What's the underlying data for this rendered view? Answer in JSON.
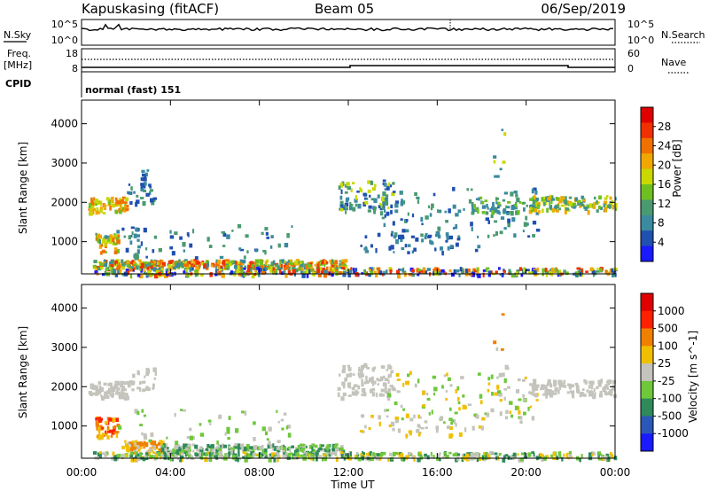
{
  "header": {
    "station": "Kapuskasing (fitACF)",
    "beam": "Beam 05",
    "date": "06/Sep/2019"
  },
  "noise": {
    "left_label": "N.Sky",
    "left_ticks": [
      "10^5",
      "10^0"
    ],
    "right_label": "N.Search",
    "right_ticks": [
      "10^5",
      "10^0"
    ]
  },
  "freq": {
    "left_label": "Freq.",
    "left_unit": "[MHz]",
    "left_ticks": [
      "18",
      "8"
    ],
    "right_label": "Nave",
    "right_ticks": [
      "60",
      "0"
    ]
  },
  "cpid": {
    "label": "CPID",
    "value": "normal (fast) 151"
  },
  "chart_data": [
    {
      "type": "scatter",
      "title": "",
      "xlabel": "",
      "ylabel": "Slant Range [km]",
      "x_ticks": [
        "00:00",
        "04:00",
        "08:00",
        "12:00",
        "16:00",
        "20:00",
        "00:00"
      ],
      "y_ticks": [
        1000,
        2000,
        3000,
        4000
      ],
      "ylim": [
        180,
        4600
      ],
      "xlim_hours": [
        0,
        24
      ],
      "colorbar": {
        "label": "Power [dB]",
        "ticks": [
          "4",
          "8",
          "12",
          "16",
          "20",
          "24",
          "28"
        ],
        "colors": [
          "#1a1aff",
          "#2050b0",
          "#3a8aa0",
          "#4a9a70",
          "#6ec020",
          "#c8d800",
          "#f0a800",
          "#f07000",
          "#f03000",
          "#e00000"
        ]
      },
      "regions": [
        {
          "t": [
            0.3,
            2.0
          ],
          "r": [
            1750,
            2150
          ],
          "c": [
            4,
            5,
            6,
            7
          ],
          "n": 80
        },
        {
          "t": [
            2.0,
            3.3
          ],
          "r": [
            1950,
            2550
          ],
          "c": [
            1,
            2,
            3
          ],
          "n": 30
        },
        {
          "t": [
            2.6,
            3.0
          ],
          "r": [
            2600,
            2850
          ],
          "c": [
            1,
            2
          ],
          "n": 8
        },
        {
          "t": [
            0.6,
            1.6
          ],
          "r": [
            750,
            1250
          ],
          "c": [
            2,
            4,
            5,
            6,
            7
          ],
          "n": 45
        },
        {
          "t": [
            0.5,
            11.8
          ],
          "r": [
            350,
            560
          ],
          "c": [
            2,
            3,
            4,
            5,
            6,
            7,
            8
          ],
          "n": 420
        },
        {
          "t": [
            0.5,
            24.0
          ],
          "r": [
            180,
            360
          ],
          "c": [
            0,
            1,
            2,
            3,
            4,
            5,
            6,
            7,
            8
          ],
          "n": 420
        },
        {
          "t": [
            1.5,
            9.5
          ],
          "r": [
            620,
            1450
          ],
          "c": [
            1,
            2,
            3
          ],
          "n": 70
        },
        {
          "t": [
            11.5,
            14.0
          ],
          "r": [
            1750,
            2600
          ],
          "c": [
            1,
            2,
            3,
            5
          ],
          "n": 90
        },
        {
          "t": [
            13.5,
            20.5
          ],
          "r": [
            1100,
            2400
          ],
          "c": [
            1,
            2,
            3
          ],
          "n": 110
        },
        {
          "t": [
            17.5,
            20.5
          ],
          "r": [
            1750,
            2150
          ],
          "c": [
            2,
            3,
            4
          ],
          "n": 60
        },
        {
          "t": [
            20.0,
            24.0
          ],
          "r": [
            1800,
            2200
          ],
          "c": [
            2,
            3,
            4,
            5,
            6
          ],
          "n": 130
        },
        {
          "t": [
            12.5,
            18.0
          ],
          "r": [
            750,
            1300
          ],
          "c": [
            1,
            2
          ],
          "n": 50
        },
        {
          "t": [
            18.5,
            19.2
          ],
          "r": [
            2500,
            4000
          ],
          "c": [
            2,
            5
          ],
          "n": 8
        }
      ]
    },
    {
      "type": "scatter",
      "title": "",
      "xlabel": "Time UT",
      "ylabel": "Slant Range [km]",
      "x_ticks": [
        "00:00",
        "04:00",
        "08:00",
        "12:00",
        "16:00",
        "20:00",
        "00:00"
      ],
      "y_ticks": [
        1000,
        2000,
        3000,
        4000
      ],
      "ylim": [
        180,
        4600
      ],
      "xlim_hours": [
        0,
        24
      ],
      "colorbar": {
        "label": "Velocity [m s^-1]",
        "ticks": [
          "1000",
          "500",
          "100",
          "25",
          "-25",
          "-100",
          "-500",
          "-1000"
        ],
        "colors": [
          "#1a1aff",
          "#2a58b8",
          "#2f8a5a",
          "#6ec83a",
          "#c4c4bc",
          "#f0c000",
          "#f08000",
          "#ff2000",
          "#e00000"
        ]
      },
      "regions": [
        {
          "t": [
            0.3,
            2.0
          ],
          "r": [
            1750,
            2150
          ],
          "c": [
            4
          ],
          "n": 80
        },
        {
          "t": [
            2.0,
            3.3
          ],
          "r": [
            1950,
            2550
          ],
          "c": [
            4
          ],
          "n": 30
        },
        {
          "t": [
            0.6,
            1.6
          ],
          "r": [
            750,
            1250
          ],
          "c": [
            5,
            6,
            7
          ],
          "n": 50
        },
        {
          "t": [
            1.8,
            3.6
          ],
          "r": [
            350,
            650
          ],
          "c": [
            4,
            5,
            6
          ],
          "n": 70
        },
        {
          "t": [
            3.5,
            11.8
          ],
          "r": [
            300,
            560
          ],
          "c": [
            2,
            3,
            4
          ],
          "n": 260
        },
        {
          "t": [
            0.5,
            24.0
          ],
          "r": [
            180,
            360
          ],
          "c": [
            3,
            4,
            2,
            5
          ],
          "n": 420
        },
        {
          "t": [
            1.5,
            9.5
          ],
          "r": [
            620,
            1450
          ],
          "c": [
            4,
            3
          ],
          "n": 50
        },
        {
          "t": [
            11.5,
            14.0
          ],
          "r": [
            1750,
            2600
          ],
          "c": [
            4
          ],
          "n": 90
        },
        {
          "t": [
            13.5,
            20.5
          ],
          "r": [
            1100,
            2400
          ],
          "c": [
            4,
            5,
            3
          ],
          "n": 110
        },
        {
          "t": [
            20.0,
            24.0
          ],
          "r": [
            1800,
            2200
          ],
          "c": [
            4
          ],
          "n": 130
        },
        {
          "t": [
            12.5,
            18.0
          ],
          "r": [
            750,
            1300
          ],
          "c": [
            4,
            5
          ],
          "n": 45
        },
        {
          "t": [
            18.5,
            19.2
          ],
          "r": [
            2500,
            4000
          ],
          "c": [
            4,
            6
          ],
          "n": 6
        }
      ]
    }
  ]
}
